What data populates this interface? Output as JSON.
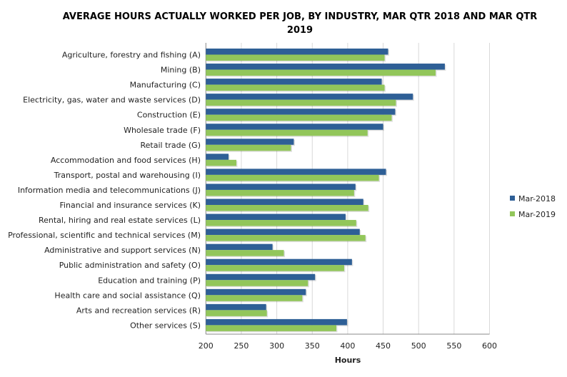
{
  "chart_data": {
    "type": "bar",
    "orientation": "horizontal",
    "title": "AVERAGE HOURS ACTUALLY WORKED PER JOB, BY INDUSTRY, MAR QTR 2018 AND MAR QTR 2019",
    "title_lines": [
      "AVERAGE HOURS ACTUALLY WORKED PER JOB, BY INDUSTRY, MAR QTR 2018 AND MAR QTR",
      "2019"
    ],
    "xlabel": "Hours",
    "ylabel": "",
    "xlim": [
      200,
      600
    ],
    "xticks": [
      "200",
      "250",
      "300",
      "350",
      "400",
      "450",
      "500",
      "550",
      "600"
    ],
    "grid": true,
    "legend_position": "right",
    "categories": [
      "Agriculture, forestry and fishing (A)",
      "Mining (B)",
      "Manufacturing (C)",
      "Electricity, gas, water and waste services (D)",
      "Construction (E)",
      "Wholesale trade (F)",
      "Retail trade (G)",
      "Accommodation and food services (H)",
      "Transport, postal and warehousing (I)",
      "Information media and telecommunications (J)",
      "Financial and insurance services (K)",
      "Rental, hiring and real estate services (L)",
      "Professional, scientific and technical services (M)",
      "Administrative and support services (N)",
      "Public administration and safety (O)",
      "Education and training (P)",
      "Health care and social assistance (Q)",
      "Arts and recreation services (R)",
      "Other services (S)"
    ],
    "series": [
      {
        "name": "Mar-2018",
        "color": "#2e5f96",
        "values": [
          457,
          537,
          448,
          492,
          467,
          450,
          324,
          232,
          454,
          411,
          422,
          397,
          417,
          294,
          406,
          354,
          341,
          285,
          399
        ]
      },
      {
        "name": "Mar-2019",
        "color": "#92c65a",
        "values": [
          452,
          524,
          452,
          468,
          462,
          428,
          320,
          243,
          444,
          409,
          429,
          412,
          425,
          310,
          395,
          344,
          336,
          286,
          384
        ]
      }
    ]
  }
}
